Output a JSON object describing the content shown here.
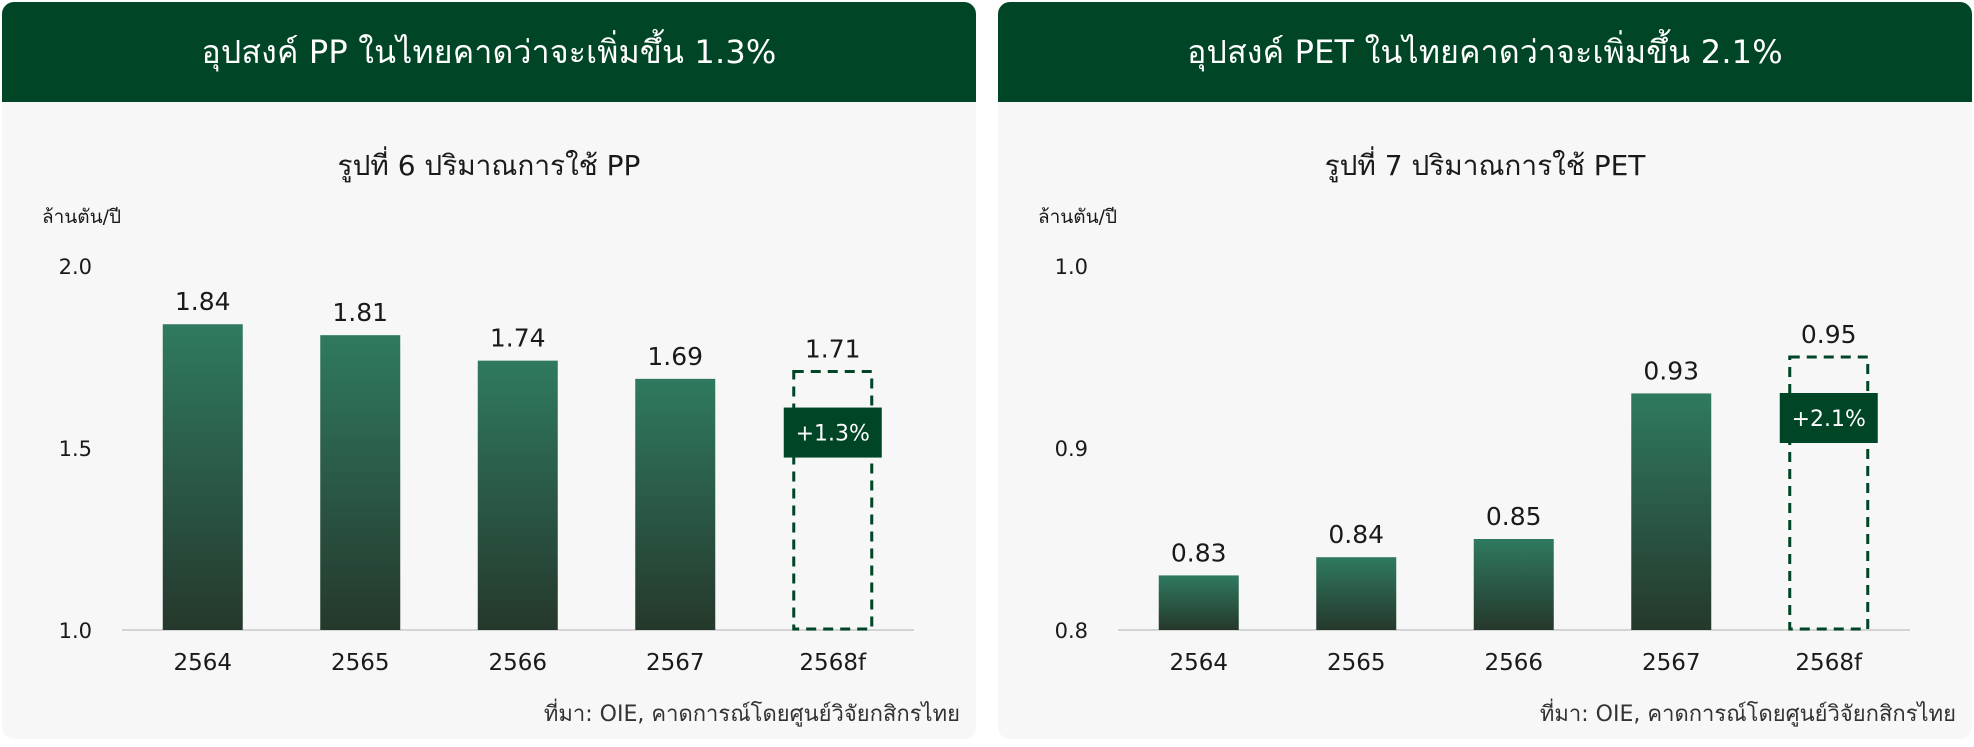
{
  "colors": {
    "header_bg": "#004526",
    "bar_top": "#2f7a5f",
    "bar_bottom": "#25382c",
    "forecast_stroke": "#004526",
    "badge_bg": "#004526"
  },
  "panels": [
    {
      "header": "อุปสงค์ PP ในไทยคาดว่าจะเพิ่มขึ้น 1.3%",
      "unit": "ล้านตัน/ปี",
      "source": "ที่มา: OIE, คาดการณ์โดยศูนย์วิจัยกสิกรไทย",
      "badge": "+1.3%"
    },
    {
      "header": "อุปสงค์ PET ในไทยคาดว่าจะเพิ่มขึ้น 2.1%",
      "unit": "ล้านตัน/ปี",
      "source": "ที่มา: OIE, คาดการณ์โดยศูนย์วิจัยกสิกรไทย",
      "badge": "+2.1%"
    }
  ],
  "chart_data": [
    {
      "type": "bar",
      "title": "รูปที่ 6 ปริมาณการใช้ PP",
      "ylabel": "ล้านตัน/ปี",
      "categories": [
        "2564",
        "2565",
        "2566",
        "2567",
        "2568f"
      ],
      "values": [
        1.84,
        1.81,
        1.74,
        1.69,
        1.71
      ],
      "value_labels": [
        "1.84",
        "1.81",
        "1.74",
        "1.69",
        "1.71"
      ],
      "forecast_index": 4,
      "ylim": [
        1.0,
        2.0
      ],
      "yticks": [
        "1.0",
        "1.5",
        "2.0"
      ],
      "grid": false
    },
    {
      "type": "bar",
      "title": "รูปที่ 7 ปริมาณการใช้ PET",
      "ylabel": "ล้านตัน/ปี",
      "categories": [
        "2564",
        "2565",
        "2566",
        "2567",
        "2568f"
      ],
      "values": [
        0.83,
        0.84,
        0.85,
        0.93,
        0.95
      ],
      "value_labels": [
        "0.83",
        "0.84",
        "0.85",
        "0.93",
        "0.95"
      ],
      "forecast_index": 4,
      "ylim": [
        0.8,
        1.0
      ],
      "yticks": [
        "0.8",
        "0.9",
        "1.0"
      ],
      "grid": false
    }
  ]
}
